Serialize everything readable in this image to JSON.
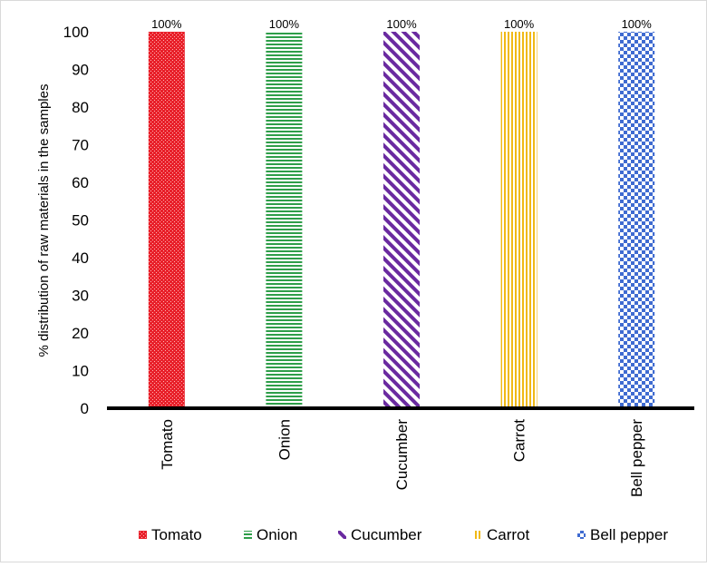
{
  "chart_data": {
    "type": "bar",
    "categories": [
      "Tomato",
      "Onion",
      "Cucumber",
      "Carrot",
      "Bell pepper"
    ],
    "values": [
      100,
      100,
      100,
      100,
      100
    ],
    "data_labels": [
      "100%",
      "100%",
      "100%",
      "100%",
      "100%"
    ],
    "ylabel": "% distribution of raw materials in the samples",
    "xlabel": "",
    "ylim": [
      0,
      100
    ],
    "yticks": [
      0,
      10,
      20,
      30,
      40,
      50,
      60,
      70,
      80,
      90,
      100
    ],
    "grid": false,
    "legend_position": "bottom",
    "series_styles": [
      {
        "name": "Tomato",
        "color": "#e8202a",
        "pattern": "small-checker"
      },
      {
        "name": "Onion",
        "color": "#2e9e49",
        "pattern": "horizontal-stripes"
      },
      {
        "name": "Cucumber",
        "color": "#6a2aa0",
        "pattern": "diagonal-stripes"
      },
      {
        "name": "Carrot",
        "color": "#f0b915",
        "pattern": "vertical-stripes"
      },
      {
        "name": "Bell pepper",
        "color": "#3f6bd1",
        "pattern": "checker"
      }
    ]
  }
}
